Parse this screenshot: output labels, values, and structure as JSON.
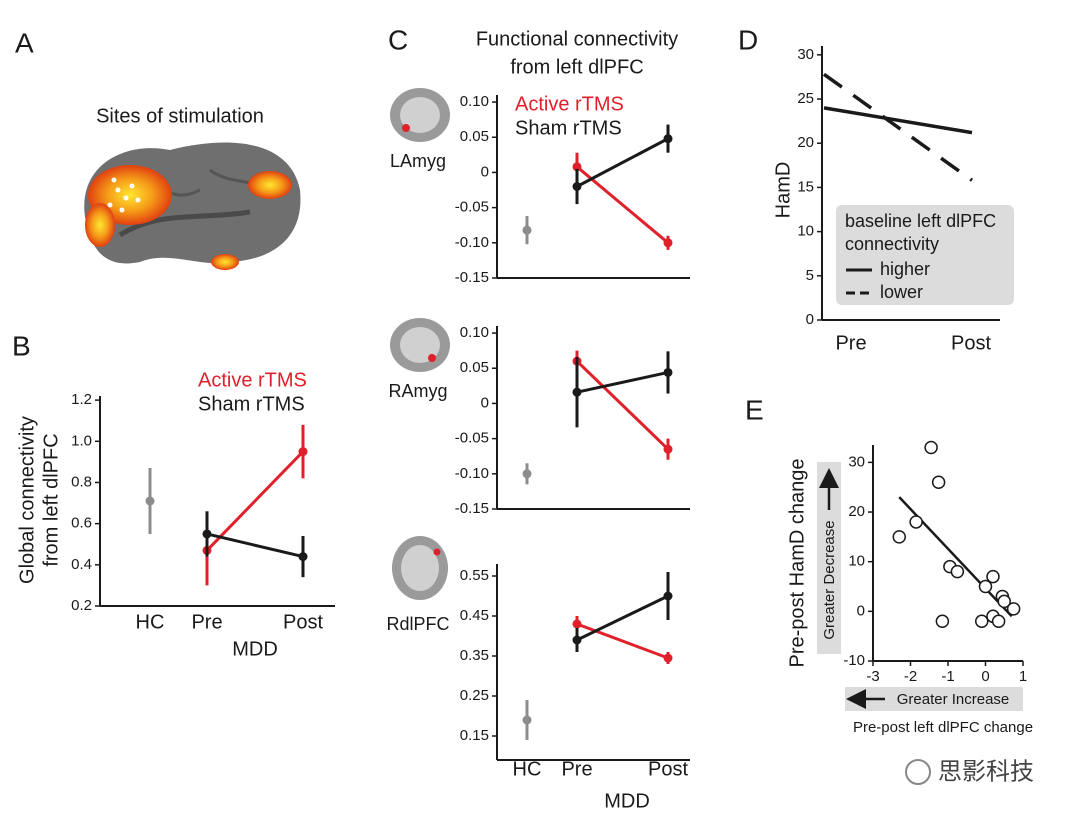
{
  "chart_data": [
    {
      "type": "image",
      "panel_label": "A",
      "title": "Sites of stimulation"
    },
    {
      "type": "line",
      "panel_label": "B",
      "ylabel": [
        "Global connectivity",
        "from left dlPFC"
      ],
      "categories": [
        "HC",
        "Pre",
        "Post"
      ],
      "group_label": "MDD",
      "ylim": [
        0.2,
        1.22
      ],
      "yticks": [
        0.2,
        0.4,
        0.6,
        0.8,
        {
          "value": 1,
          "label": "1.0"
        },
        1.2
      ],
      "series": [
        {
          "color": "#8c8c8c",
          "values": [
            0.71,
            null,
            null
          ],
          "errors": [
            0.16,
            null,
            null
          ]
        },
        {
          "name": "Active rTMS",
          "color": "#e0202a",
          "values": [
            null,
            0.47,
            0.95
          ],
          "errors": [
            null,
            0.17,
            0.13
          ]
        },
        {
          "name": "Sham rTMS",
          "color": "#1a1a1a",
          "values": [
            null,
            0.55,
            0.44
          ],
          "errors": [
            null,
            0.11,
            0.1
          ]
        }
      ]
    },
    {
      "type": "line-panels",
      "panel_label": "C",
      "title": [
        "Functional connectivity",
        "from left dlPFC"
      ],
      "categories": [
        "HC",
        "Pre",
        "Post"
      ],
      "group_label": "MDD",
      "panels": [
        {
          "label": "LAmyg",
          "ylim": [
            -0.15,
            0.11
          ],
          "yticks": [
            {
              "value": 0.1,
              "label": "0.10"
            },
            0.05,
            0,
            -0.05,
            {
              "value": -0.1,
              "label": "-0.10"
            },
            -0.15
          ],
          "series": [
            {
              "color": "#8c8c8c",
              "values": [
                -0.082,
                null,
                null
              ],
              "errors": [
                0.02,
                null,
                null
              ]
            },
            {
              "name": "Active rTMS",
              "color": "#e0202a",
              "values": [
                null,
                0.008,
                -0.1
              ],
              "errors": [
                null,
                0.02,
                0.01
              ]
            },
            {
              "name": "Sham rTMS",
              "color": "#1a1a1a",
              "values": [
                null,
                -0.02,
                0.048
              ],
              "errors": [
                null,
                0.025,
                0.02
              ]
            }
          ]
        },
        {
          "label": "RAmyg",
          "ylim": [
            -0.15,
            0.11
          ],
          "yticks": [
            {
              "value": 0.1,
              "label": "0.10"
            },
            0.05,
            0,
            -0.05,
            {
              "value": -0.1,
              "label": "-0.10"
            },
            -0.15
          ],
          "series": [
            {
              "color": "#8c8c8c",
              "values": [
                -0.1,
                null,
                null
              ],
              "errors": [
                0.015,
                null,
                null
              ]
            },
            {
              "color": "#e0202a",
              "values": [
                null,
                0.06,
                -0.065
              ],
              "errors": [
                null,
                0.015,
                0.015
              ]
            },
            {
              "color": "#1a1a1a",
              "values": [
                null,
                0.016,
                0.044
              ],
              "errors": [
                null,
                0.05,
                0.03
              ]
            }
          ]
        },
        {
          "label": "RdlPFC",
          "ylim": [
            0.09,
            0.58
          ],
          "yticks": [
            0.55,
            0.45,
            0.35,
            0.25,
            0.15
          ],
          "series": [
            {
              "color": "#8c8c8c",
              "values": [
                0.19,
                null,
                null
              ],
              "errors": [
                0.05,
                null,
                null
              ]
            },
            {
              "color": "#e0202a",
              "values": [
                null,
                0.43,
                0.345
              ],
              "errors": [
                null,
                0.02,
                0.015
              ]
            },
            {
              "color": "#1a1a1a",
              "values": [
                null,
                0.39,
                0.5
              ],
              "errors": [
                null,
                0.03,
                0.06
              ]
            }
          ]
        }
      ]
    },
    {
      "type": "dash-line",
      "panel_label": "D",
      "ylabel": "HamD",
      "categories": [
        "Pre",
        "Post"
      ],
      "ylim": [
        0,
        31
      ],
      "yticks": [
        0,
        5,
        10,
        15,
        20,
        25,
        30
      ],
      "legend_title": [
        "baseline left dlPFC",
        "connectivity"
      ],
      "series": [
        {
          "name": "higher",
          "color": "#1a1a1a",
          "dash": "solid",
          "values": [
            24,
            21.2
          ]
        },
        {
          "name": "lower",
          "color": "#1a1a1a",
          "dash": "dashed",
          "values": [
            27.8,
            15.8
          ]
        }
      ]
    },
    {
      "type": "scatter",
      "panel_label": "E",
      "ylabel": "Pre-post HamD change",
      "xlabel": "Pre-post left dlPFC change",
      "annotations": [
        "Greater Decrease",
        "Greater Increase"
      ],
      "xlim": [
        -3,
        1
      ],
      "xticks": [
        -3,
        -2,
        -1,
        0,
        1
      ],
      "ylim": [
        -10,
        33.5
      ],
      "yticks": [
        -10,
        0,
        10,
        20,
        30
      ],
      "x": [
        -2.3,
        -1.85,
        -1.45,
        -1.25,
        -1.15,
        -0.95,
        -0.75,
        0,
        0.2,
        -0.1,
        0.2,
        0.35,
        0.45,
        0.5,
        0.75
      ],
      "values": [
        15,
        18,
        33,
        26,
        -2,
        9,
        8,
        5,
        7,
        -2,
        -1,
        -2,
        3,
        2,
        0.5
      ],
      "fit": {
        "x": [
          -2.3,
          0.7
        ],
        "y": [
          23,
          -1
        ]
      }
    },
    {
      "type": "watermark",
      "text": "思影科技"
    }
  ]
}
